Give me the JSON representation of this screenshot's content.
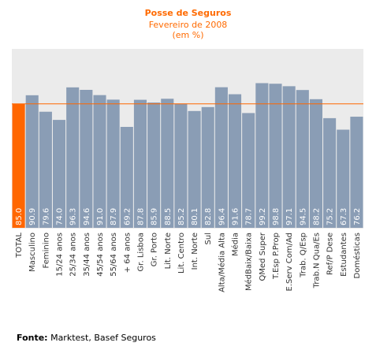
{
  "chart_data": {
    "type": "bar",
    "title": "Posse de Seguros",
    "subtitle": "Fevereiro de 2008",
    "unit": "(em %)",
    "categories": [
      "TOTAL",
      "Masculino",
      "Feminino",
      "15/24 anos",
      "25/34 anos",
      "35/44 anos",
      "45/54 anos",
      "55/64 anos",
      "+ 64 anos",
      "Gr. Lisboa",
      "Gr. Porto",
      "Lit. Norte",
      "Lit. Centro",
      "Int. Norte",
      "Sul",
      "Alta/Média Alta",
      "Média",
      "MédBaix/Baixa",
      "QMed Super",
      "T.Esp P.Prop",
      "E.Serv Com/Ad",
      "Trab. Q/Esp",
      "Trab.N Qua/Es",
      "Ref/P Dese",
      "Estudantes",
      "Domésticas"
    ],
    "values": [
      85.0,
      90.9,
      79.6,
      74.0,
      96.3,
      94.6,
      91.0,
      87.9,
      69.2,
      87.8,
      85.9,
      88.5,
      85.2,
      80.1,
      82.8,
      96.4,
      91.6,
      78.7,
      99.2,
      98.8,
      97.1,
      94.5,
      88.2,
      75.2,
      67.3,
      76.2
    ],
    "value_labels": [
      "85.0",
      "90.9",
      "79.6",
      "74.0",
      "96.3",
      "94.6",
      "91.0",
      "87.9",
      "69.2",
      "87.8",
      "85.9",
      "88.5",
      "85.2",
      "80.1",
      "82.8",
      "96.4",
      "91.6",
      "78.7",
      "99.2",
      "98.8",
      "97.1",
      "94.5",
      "88.2",
      "75.2",
      "67.3",
      "76.2"
    ],
    "reference_line": 85.0,
    "highlight_index": 0,
    "ylim": [
      0,
      100
    ],
    "grid": false,
    "legend": "none",
    "colors": {
      "bar": "#8a9db5",
      "highlight": "#ff6600",
      "reference_line": "#ff6600",
      "plot_bg": "#ebebeb",
      "value_label": "#ffffff",
      "title": "#ff6a00"
    }
  },
  "source": {
    "label": "Fonte:",
    "text": " Marktest, Basef Seguros"
  }
}
